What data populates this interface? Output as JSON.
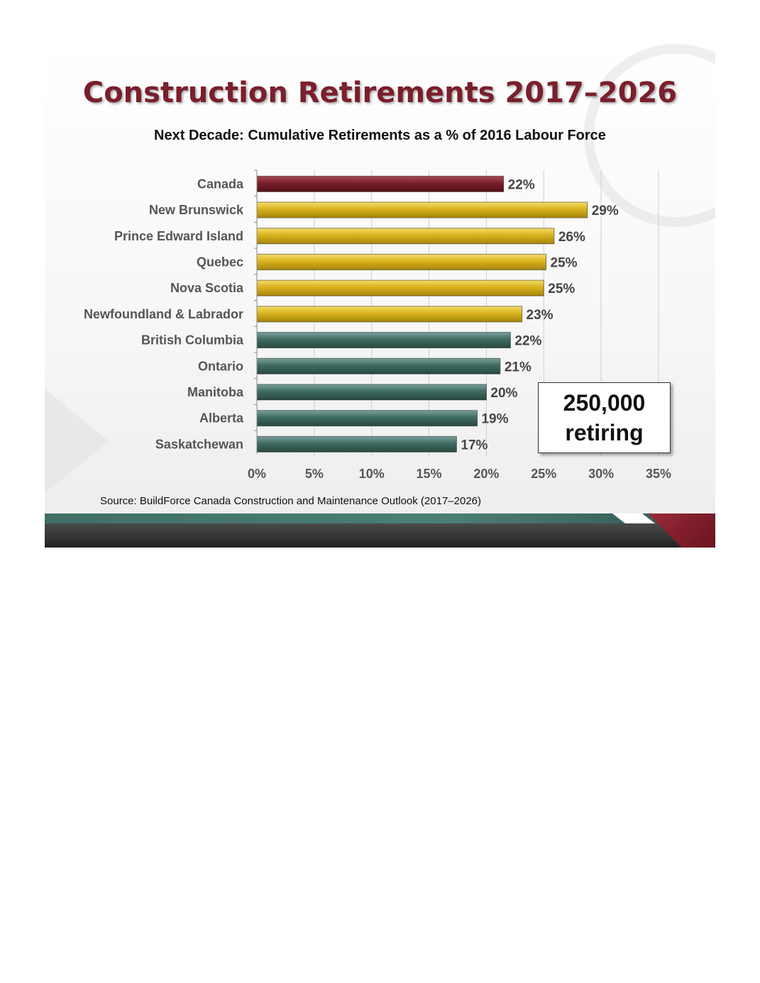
{
  "title": "Construction Retirements 2017–2026",
  "callout": {
    "line1": "250,000",
    "line2": "retiring"
  },
  "source": "Source: BuildForce Canada Construction and Maintenance Outlook (2017–2026)",
  "colors": {
    "canada": "#7a1f2b",
    "atlantic_quebec": "#d9b21c",
    "others": "#3e6b63"
  },
  "chart_data": {
    "type": "bar",
    "orientation": "horizontal",
    "title": "Next Decade: Cumulative Retirements as a % of 2016 Labour Force",
    "xlabel": "",
    "ylabel": "",
    "xlim": [
      0,
      35
    ],
    "grid": true,
    "categories": [
      "Canada",
      "New Brunswick",
      "Prince Edward Island",
      "Quebec",
      "Nova Scotia",
      "Newfoundland & Labrador",
      "British Columbia",
      "Ontario",
      "Manitoba",
      "Alberta",
      "Saskatchewan"
    ],
    "values": [
      21.5,
      28.8,
      25.9,
      25.2,
      25.0,
      23.1,
      22.1,
      21.2,
      20.0,
      19.2,
      17.4
    ],
    "value_labels": [
      "22%",
      "29%",
      "26%",
      "25%",
      "25%",
      "23%",
      "22%",
      "21%",
      "20%",
      "19%",
      "17%"
    ],
    "bar_colors": [
      "#7a1f2b",
      "#d9b21c",
      "#d9b21c",
      "#d9b21c",
      "#d9b21c",
      "#d9b21c",
      "#3e6b63",
      "#3e6b63",
      "#3e6b63",
      "#3e6b63",
      "#3e6b63"
    ],
    "ticks": [
      0,
      5,
      10,
      15,
      20,
      25,
      30,
      35
    ],
    "tick_labels": [
      "0%",
      "5%",
      "10%",
      "15%",
      "20%",
      "25%",
      "30%",
      "35%"
    ]
  }
}
